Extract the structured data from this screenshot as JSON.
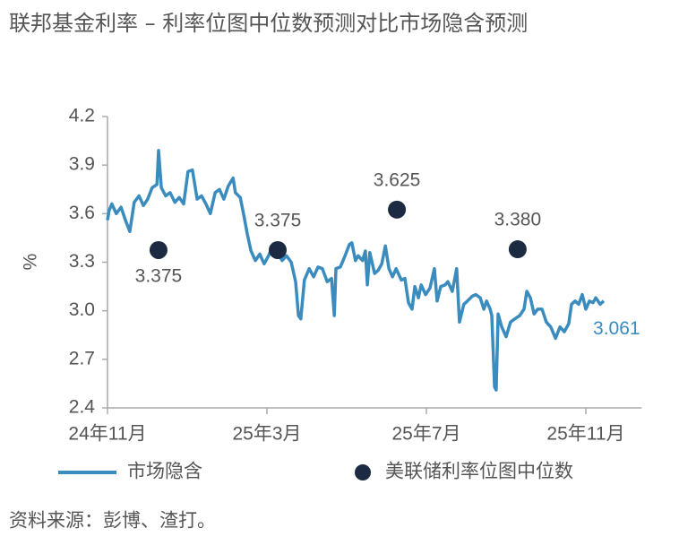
{
  "chart_data": {
    "type": "line",
    "title": "联邦基金利率 – 利率位图中位数预测对比市场隐含预测",
    "y_label": "%",
    "xlim": [
      0,
      13.4
    ],
    "xticks": [
      {
        "value": 0,
        "label": "24年11月"
      },
      {
        "value": 4,
        "label": "25年3月"
      },
      {
        "value": 8,
        "label": "25年7月"
      },
      {
        "value": 12,
        "label": "25年11月"
      }
    ],
    "ylim": [
      2.4,
      4.2
    ],
    "yticks": [
      2.4,
      2.7,
      {
        "value": 3,
        "label": "3.0"
      },
      3.3,
      3.6,
      3.9,
      4.2
    ],
    "series": [
      {
        "name": "市场隐含",
        "type": "line",
        "color": "#3a8cbf",
        "x": [
          0,
          0.04,
          0.11,
          0.22,
          0.34,
          0.45,
          0.56,
          0.67,
          0.79,
          0.9,
          1.01,
          1.12,
          1.24,
          1.28,
          1.35,
          1.46,
          1.57,
          1.69,
          1.8,
          1.91,
          2.02,
          2.13,
          2.25,
          2.36,
          2.47,
          2.58,
          2.7,
          2.81,
          2.92,
          3.03,
          3.15,
          3.21,
          3.33,
          3.42,
          3.51,
          3.6,
          3.71,
          3.82,
          3.93,
          4.04,
          4.16,
          4.27,
          4.38,
          4.49,
          4.61,
          4.72,
          4.79,
          4.85,
          4.94,
          5.06,
          5.17,
          5.28,
          5.39,
          5.51,
          5.62,
          5.69,
          5.73,
          5.84,
          5.96,
          6.07,
          6.13,
          6.22,
          6.29,
          6.4,
          6.47,
          6.52,
          6.58,
          6.7,
          6.79,
          6.88,
          6.97,
          7.06,
          7.15,
          7.24,
          7.37,
          7.46,
          7.55,
          7.64,
          7.71,
          7.8,
          7.87,
          7.98,
          8.09,
          8.2,
          8.27,
          8.36,
          8.47,
          8.54,
          8.65,
          8.76,
          8.83,
          8.94,
          9.03,
          9.15,
          9.24,
          9.35,
          9.44,
          9.51,
          9.6,
          9.64,
          9.71,
          9.75,
          9.8,
          9.89,
          10,
          10.11,
          10.22,
          10.34,
          10.45,
          10.52,
          10.61,
          10.7,
          10.79,
          10.9,
          11.01,
          11.12,
          11.24,
          11.35,
          11.46,
          11.57,
          11.64,
          11.73,
          11.82,
          11.91,
          12,
          12.09,
          12.18,
          12.25,
          12.36,
          12.45
        ],
        "values": [
          3.56,
          3.62,
          3.66,
          3.6,
          3.64,
          3.56,
          3.49,
          3.67,
          3.71,
          3.65,
          3.69,
          3.76,
          3.78,
          3.99,
          3.76,
          3.71,
          3.73,
          3.67,
          3.7,
          3.66,
          3.86,
          3.87,
          3.69,
          3.71,
          3.66,
          3.6,
          3.73,
          3.75,
          3.69,
          3.77,
          3.82,
          3.73,
          3.7,
          3.59,
          3.47,
          3.37,
          3.31,
          3.35,
          3.29,
          3.34,
          3.41,
          3.36,
          3.31,
          3.34,
          3.3,
          3.18,
          2.97,
          2.95,
          3.19,
          3.26,
          3.21,
          3.27,
          3.26,
          3.18,
          3.2,
          2.97,
          3.26,
          3.27,
          3.34,
          3.41,
          3.42,
          3.31,
          3.34,
          3.31,
          3.37,
          3.16,
          3.36,
          3.23,
          3.25,
          3.29,
          3.4,
          3.26,
          3.21,
          3.26,
          3.19,
          3.2,
          3.05,
          3.01,
          3.15,
          3.08,
          3.16,
          3.1,
          3.14,
          3.26,
          3.06,
          3.15,
          3.16,
          3.18,
          3.12,
          3.26,
          2.93,
          3.04,
          3.06,
          3.09,
          3.1,
          3.08,
          3.01,
          3.06,
          3.01,
          2.97,
          2.53,
          2.51,
          2.98,
          2.9,
          2.84,
          2.93,
          2.95,
          2.97,
          3.01,
          3.12,
          3.08,
          2.98,
          3.01,
          3.01,
          2.93,
          2.9,
          2.83,
          2.9,
          2.87,
          2.92,
          3.04,
          3.06,
          3.04,
          3.1,
          3.01,
          3.06,
          3.05,
          3.08,
          3.04,
          3.061
        ]
      },
      {
        "name": "美联储利率位图中位数",
        "type": "scatter",
        "color": "#1c2b42",
        "x": [
          1.28,
          4.27,
          7.26,
          10.29
        ],
        "values": [
          3.375,
          3.375,
          3.625,
          3.38
        ],
        "value_labels": [
          "3.375",
          "3.375",
          "3.625",
          "3.380"
        ]
      }
    ],
    "source": "资料来源：彭博、渣打。"
  }
}
